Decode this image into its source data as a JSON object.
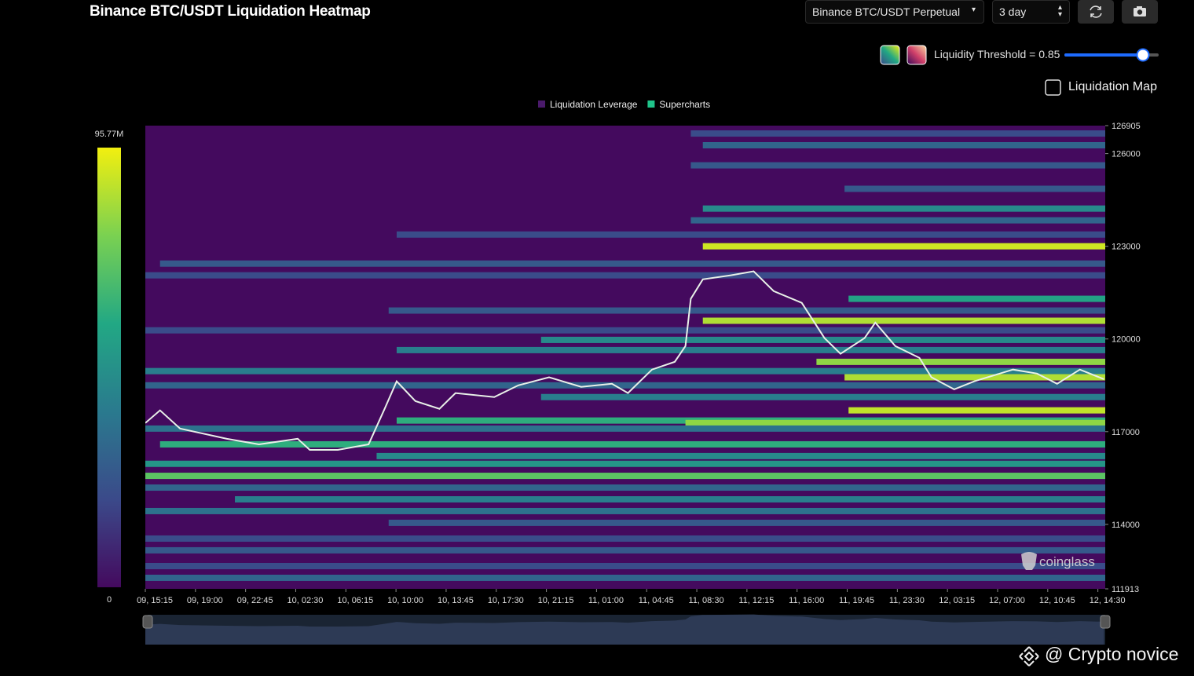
{
  "header": {
    "title": "Binance BTC/USDT Liquidation Heatmap",
    "pair_select": "Binance BTC/USDT Perpetual",
    "range_select": "3 day",
    "threshold_label": "Liquidity Threshold = 0.85",
    "liquidation_map": "Liquidation Map"
  },
  "watermark": "coinglass",
  "credit": "@ Crypto novice",
  "chart_data": {
    "type": "heatmap",
    "background": "#440a5e",
    "colorscale": [
      "#440a5e",
      "#3b4a8a",
      "#2a7a8e",
      "#22a884",
      "#7ad151",
      "#f2ef0f"
    ],
    "line_color": "#e8f0e8",
    "legend": [
      {
        "name": "Liquidation Leverage",
        "color": "#4a1a6b"
      },
      {
        "name": "Supercharts",
        "color": "#1fc48a"
      }
    ],
    "xlim": [
      0,
      71.8
    ],
    "xticks": [
      {
        "value": 0,
        "label": "09, 15:15"
      },
      {
        "value": 3.75,
        "label": "09, 19:00"
      },
      {
        "value": 7.5,
        "label": "09, 22:45"
      },
      {
        "value": 11.25,
        "label": "10, 02:30"
      },
      {
        "value": 15,
        "label": "10, 06:15"
      },
      {
        "value": 18.75,
        "label": "10, 10:00"
      },
      {
        "value": 22.5,
        "label": "10, 13:45"
      },
      {
        "value": 26.25,
        "label": "10, 17:30"
      },
      {
        "value": 30,
        "label": "10, 21:15"
      },
      {
        "value": 33.75,
        "label": "11, 01:00"
      },
      {
        "value": 37.5,
        "label": "11, 04:45"
      },
      {
        "value": 41.25,
        "label": "11, 08:30"
      },
      {
        "value": 45,
        "label": "11, 12:15"
      },
      {
        "value": 48.75,
        "label": "11, 16:00"
      },
      {
        "value": 52.5,
        "label": "11, 19:45"
      },
      {
        "value": 56.25,
        "label": "11, 23:30"
      },
      {
        "value": 60,
        "label": "12, 03:15"
      },
      {
        "value": 63.75,
        "label": "12, 07:00"
      },
      {
        "value": 67.5,
        "label": "12, 10:45"
      },
      {
        "value": 71.25,
        "label": "12, 14:30"
      }
    ],
    "ylim": [
      111913,
      126905
    ],
    "yticks": [
      111913,
      114000,
      117000,
      120000,
      123000,
      126000,
      126905
    ],
    "clim": [
      0,
      95770000
    ],
    "cticks": [
      0,
      {
        "value": 95770000,
        "label": "95.77M"
      }
    ],
    "bands": [
      {
        "price": 126650,
        "start": 40.8,
        "intensity": 20000000
      },
      {
        "price": 126270,
        "start": 41.7,
        "intensity": 30000000
      },
      {
        "price": 125620,
        "start": 40.8,
        "intensity": 25000000
      },
      {
        "price": 124860,
        "start": 52.3,
        "intensity": 25000000
      },
      {
        "price": 124220,
        "start": 41.7,
        "intensity": 45000000
      },
      {
        "price": 123840,
        "start": 40.8,
        "intensity": 30000000
      },
      {
        "price": 123380,
        "start": 18.8,
        "intensity": 20000000
      },
      {
        "price": 123000,
        "start": 41.7,
        "intensity": 90000000
      },
      {
        "price": 122440,
        "start": 1.1,
        "intensity": 25000000
      },
      {
        "price": 122060,
        "start": 0,
        "intensity": 20000000
      },
      {
        "price": 121300,
        "start": 52.6,
        "intensity": 55000000
      },
      {
        "price": 120920,
        "start": 18.2,
        "intensity": 25000000
      },
      {
        "price": 120590,
        "start": 41.7,
        "intensity": 85000000
      },
      {
        "price": 120280,
        "start": 0,
        "intensity": 20000000
      },
      {
        "price": 119970,
        "start": 29.6,
        "intensity": 45000000
      },
      {
        "price": 119640,
        "start": 18.8,
        "intensity": 40000000
      },
      {
        "price": 119260,
        "start": 50.2,
        "intensity": 80000000
      },
      {
        "price": 118960,
        "start": 0,
        "intensity": 40000000
      },
      {
        "price": 118760,
        "start": 52.3,
        "intensity": 85000000
      },
      {
        "price": 118500,
        "start": 0,
        "intensity": 30000000
      },
      {
        "price": 118120,
        "start": 29.6,
        "intensity": 40000000
      },
      {
        "price": 117690,
        "start": 52.6,
        "intensity": 88000000
      },
      {
        "price": 117360,
        "start": 18.8,
        "intensity": 60000000
      },
      {
        "price": 117280,
        "start": 40.4,
        "intensity": 80000000
      },
      {
        "price": 117100,
        "start": 0,
        "intensity": 35000000
      },
      {
        "price": 116590,
        "start": 1.1,
        "intensity": 60000000
      },
      {
        "price": 116210,
        "start": 17.3,
        "intensity": 45000000
      },
      {
        "price": 115960,
        "start": 0,
        "intensity": 50000000
      },
      {
        "price": 115570,
        "start": 0,
        "intensity": 70000000
      },
      {
        "price": 115190,
        "start": 0,
        "intensity": 30000000
      },
      {
        "price": 114810,
        "start": 6.7,
        "intensity": 40000000
      },
      {
        "price": 114430,
        "start": 0,
        "intensity": 35000000
      },
      {
        "price": 114050,
        "start": 18.2,
        "intensity": 25000000
      },
      {
        "price": 113540,
        "start": 0,
        "intensity": 20000000
      },
      {
        "price": 113160,
        "start": 0,
        "intensity": 25000000
      },
      {
        "price": 112650,
        "start": 0,
        "intensity": 20000000
      },
      {
        "price": 112270,
        "start": 0,
        "intensity": 30000000
      }
    ],
    "x": [
      0,
      1.1,
      2.6,
      6.1,
      8.5,
      11.4,
      12.3,
      14.4,
      16.7,
      17.9,
      18.8,
      20.2,
      22,
      23.2,
      26.1,
      27.9,
      30.2,
      32.6,
      34.9,
      36.1,
      37.9,
      39.6,
      40.4,
      40.8,
      41.7,
      43.8,
      45.5,
      47,
      49.1,
      50.8,
      52,
      53.8,
      54.6,
      56.1,
      57.9,
      58.8,
      60.5,
      62,
      64.9,
      66.7,
      68.2,
      69.9,
      71.7
    ],
    "price": [
      117280,
      117690,
      117100,
      116770,
      116590,
      116770,
      116410,
      116410,
      116590,
      117740,
      118630,
      117990,
      117740,
      118250,
      118120,
      118500,
      118760,
      118450,
      118550,
      118250,
      119010,
      119260,
      119770,
      121300,
      121930,
      122060,
      122190,
      121550,
      121170,
      120030,
      119520,
      120030,
      120530,
      119770,
      119390,
      118760,
      118370,
      118630,
      119010,
      118880,
      118550,
      119010,
      118700
    ]
  }
}
